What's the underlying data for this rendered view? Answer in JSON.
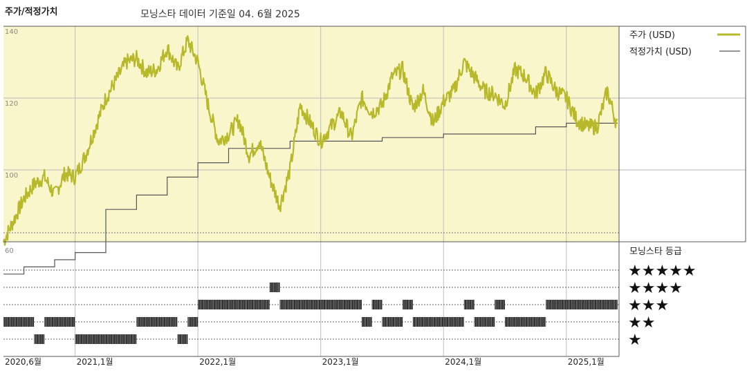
{
  "header": {
    "title": "주가/적정가치",
    "subtitle": "모닝스타 데이터 기준일 04. 6월 2025"
  },
  "colors": {
    "price": "#b7b82a",
    "fair_value": "#555555",
    "panel_bg": "#faf6cc"
  },
  "chart_data": [
    {
      "type": "line",
      "y_ticks": [
        "140",
        "120",
        "100"
      ],
      "ylim": [
        80,
        140
      ],
      "x_ticks": [
        "2020,6월",
        "2021,1월",
        "2022,1월",
        "2023,1월",
        "2024,1월",
        "2025,1월"
      ],
      "legend": [
        "주가 (USD)",
        "적정가치 (USD)"
      ],
      "legend_position": "right",
      "series": [
        {
          "name": "주가 (USD)",
          "x": [
            "2020-06",
            "2020-07",
            "2020-08",
            "2020-09",
            "2020-10",
            "2020-11",
            "2020-12",
            "2021-01",
            "2021-02",
            "2021-03",
            "2021-04",
            "2021-05",
            "2021-06",
            "2021-07",
            "2021-08",
            "2021-09",
            "2021-10",
            "2021-11",
            "2021-12",
            "2022-01",
            "2022-02",
            "2022-03",
            "2022-04",
            "2022-05",
            "2022-06",
            "2022-07",
            "2022-08",
            "2022-09",
            "2022-10",
            "2022-11",
            "2022-12",
            "2023-01",
            "2023-02",
            "2023-03",
            "2023-04",
            "2023-05",
            "2023-06",
            "2023-07",
            "2023-08",
            "2023-09",
            "2023-10",
            "2023-11",
            "2023-12",
            "2024-01",
            "2024-02",
            "2024-03",
            "2024-04",
            "2024-05",
            "2024-06",
            "2024-07",
            "2024-08",
            "2024-09",
            "2024-10",
            "2024-11",
            "2024-12",
            "2025-01",
            "2025-02",
            "2025-03",
            "2025-04",
            "2025-05",
            "2025-06"
          ],
          "values": [
            80,
            86,
            92,
            96,
            98,
            93,
            99,
            98,
            104,
            112,
            120,
            125,
            130,
            131,
            127,
            128,
            134,
            128,
            136,
            130,
            118,
            108,
            110,
            114,
            104,
            108,
            98,
            90,
            100,
            118,
            113,
            108,
            112,
            116,
            109,
            120,
            116,
            118,
            126,
            128,
            117,
            122,
            113,
            119,
            122,
            130,
            126,
            122,
            121,
            118,
            128,
            126,
            121,
            127,
            122,
            120,
            114,
            112,
            112,
            122,
            112
          ]
        },
        {
          "name": "적정가치 (USD)",
          "x": [
            "2020-06",
            "2020-08",
            "2020-11",
            "2021-01",
            "2021-04",
            "2021-07",
            "2021-10",
            "2022-01",
            "2022-04",
            "2022-07",
            "2022-10",
            "2023-01",
            "2023-04",
            "2023-07",
            "2023-10",
            "2024-01",
            "2024-04",
            "2024-07",
            "2024-10",
            "2025-01",
            "2025-04",
            "2025-06"
          ],
          "values": [
            71,
            73,
            75,
            77,
            89,
            93,
            98,
            102,
            106,
            106,
            108,
            108,
            108,
            109,
            109,
            110,
            110,
            110,
            112,
            113,
            113,
            113
          ]
        }
      ]
    },
    {
      "type": "table",
      "title": "모닝스타 등급",
      "y_ticks": [
        "60"
      ],
      "rating_levels": [
        "★★★★★",
        "★★★★",
        "★★★",
        "★★",
        "★"
      ],
      "rating_segments": [
        {
          "start": "2020-06",
          "end": "2020-09",
          "stars": 2
        },
        {
          "start": "2020-09",
          "end": "2020-10",
          "stars": 1
        },
        {
          "start": "2020-10",
          "end": "2021-01",
          "stars": 2
        },
        {
          "start": "2021-01",
          "end": "2021-07",
          "stars": 1
        },
        {
          "start": "2021-07",
          "end": "2021-11",
          "stars": 2
        },
        {
          "start": "2021-11",
          "end": "2021-12",
          "stars": 1
        },
        {
          "start": "2021-12",
          "end": "2022-01",
          "stars": 2
        },
        {
          "start": "2022-01",
          "end": "2022-08",
          "stars": 3
        },
        {
          "start": "2022-08",
          "end": "2022-09",
          "stars": 4
        },
        {
          "start": "2022-09",
          "end": "2023-05",
          "stars": 3
        },
        {
          "start": "2023-05",
          "end": "2023-06",
          "stars": 2
        },
        {
          "start": "2023-06",
          "end": "2023-07",
          "stars": 3
        },
        {
          "start": "2023-07",
          "end": "2023-09",
          "stars": 2
        },
        {
          "start": "2023-09",
          "end": "2023-10",
          "stars": 3
        },
        {
          "start": "2023-10",
          "end": "2024-03",
          "stars": 2
        },
        {
          "start": "2024-03",
          "end": "2024-04",
          "stars": 3
        },
        {
          "start": "2024-04",
          "end": "2024-06",
          "stars": 2
        },
        {
          "start": "2024-06",
          "end": "2024-07",
          "stars": 3
        },
        {
          "start": "2024-07",
          "end": "2024-11",
          "stars": 2
        },
        {
          "start": "2024-11",
          "end": "2025-06",
          "stars": 3
        }
      ]
    }
  ]
}
